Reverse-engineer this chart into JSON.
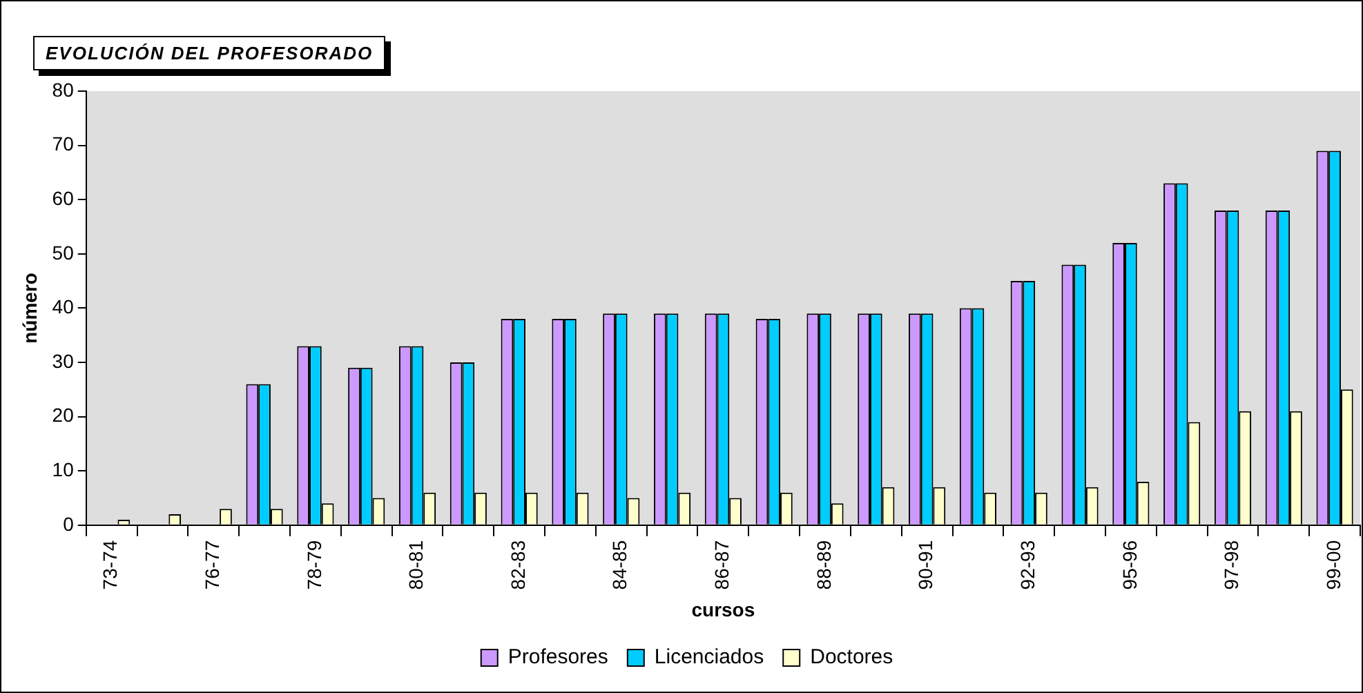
{
  "chart_data": {
    "type": "bar",
    "title": "EVOLUCIÓN DEL PROFESORADO",
    "xlabel": "cursos",
    "ylabel": "número",
    "categories": [
      "73-74",
      null,
      "76-77",
      null,
      "78-79",
      null,
      "80-81",
      null,
      "82-83",
      null,
      "84-85",
      null,
      "86-87",
      null,
      "88-89",
      null,
      "90-91",
      null,
      "92-93",
      null,
      "95-96",
      null,
      "97-98",
      null,
      "99-00"
    ],
    "series": [
      {
        "name": "Profesores",
        "color": "#cc99ff",
        "values": [
          null,
          null,
          null,
          26,
          33,
          29,
          33,
          30,
          38,
          38,
          39,
          39,
          39,
          38,
          39,
          39,
          39,
          40,
          45,
          48,
          52,
          63,
          58,
          58,
          69
        ]
      },
      {
        "name": "Licenciados",
        "color": "#00ccff",
        "values": [
          null,
          null,
          null,
          26,
          33,
          29,
          33,
          30,
          38,
          38,
          39,
          39,
          39,
          38,
          39,
          39,
          39,
          40,
          45,
          48,
          52,
          63,
          58,
          58,
          69
        ]
      },
      {
        "name": "Doctores",
        "color": "#ffffcc",
        "values": [
          1,
          2,
          3,
          3,
          4,
          5,
          6,
          6,
          6,
          6,
          5,
          6,
          5,
          6,
          4,
          7,
          7,
          6,
          6,
          7,
          8,
          19,
          21,
          21,
          25
        ]
      }
    ],
    "ylim": [
      0,
      80
    ],
    "yticks": [
      0,
      10,
      20,
      30,
      40,
      50,
      60,
      70,
      80
    ],
    "grid": false,
    "legend": "bottom"
  }
}
